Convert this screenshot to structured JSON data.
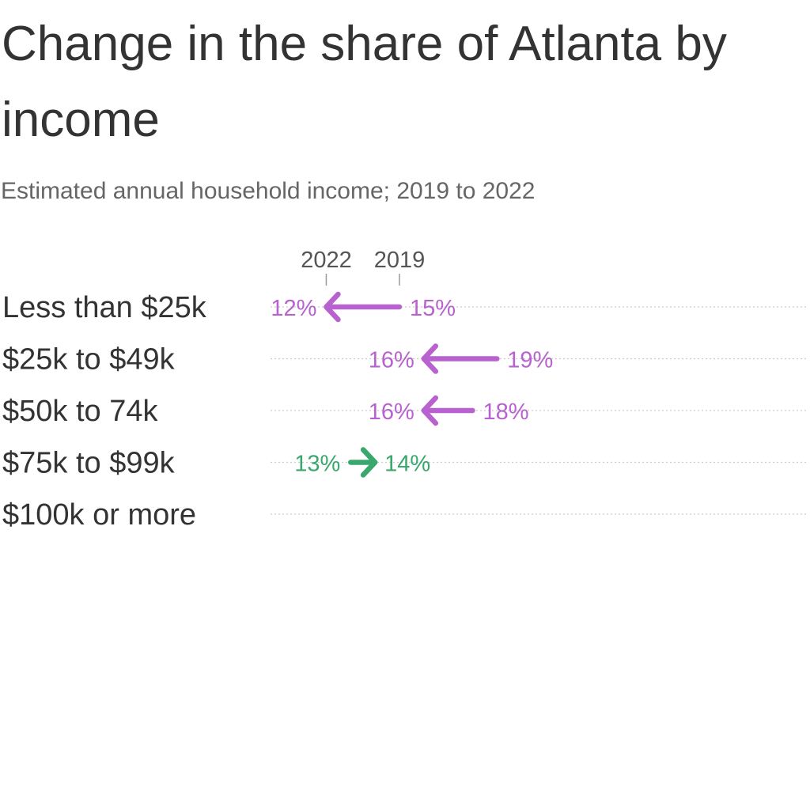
{
  "header": {
    "title": "Change in the share of Atlanta by income",
    "subtitle": "Estimated annual household income; 2019 to 2022"
  },
  "chart_data": {
    "type": "arrow",
    "title": "Change in the share of Atlanta by income",
    "subtitle": "Estimated annual household income; 2019 to 2022",
    "categories": [
      "Less than $25k",
      "$25k to $49k",
      "$50k to 74k",
      "$75k to $99k",
      "$100k or more"
    ],
    "series": [
      {
        "name": "2019",
        "values": [
          15,
          19,
          18,
          13,
          null
        ]
      },
      {
        "name": "2022",
        "values": [
          12,
          16,
          16,
          14,
          null
        ]
      }
    ],
    "value_labels_2019": [
      "15%",
      "19%",
      "18%",
      "13%",
      ""
    ],
    "value_labels_2022": [
      "12%",
      "16%",
      "16%",
      "14%",
      ""
    ],
    "legend_markers": [
      {
        "label": "2022",
        "value": 12
      },
      {
        "label": "2019",
        "value": 15
      }
    ],
    "colors": {
      "decrease": "#b862cf",
      "increase": "#3aa76d",
      "grid": "#cccccc",
      "text": "#333333",
      "tick": "#999999"
    },
    "grid": true
  }
}
